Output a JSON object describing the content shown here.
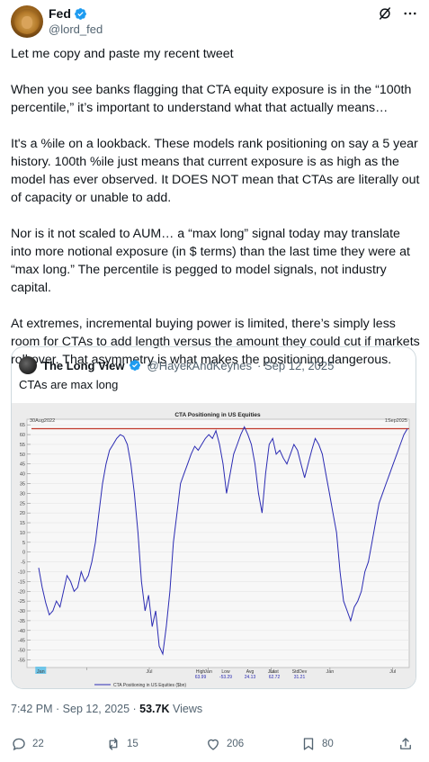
{
  "author": {
    "name": "Fed",
    "handle": "@lord_fed"
  },
  "tweet": {
    "paragraphs": [
      "Let me copy and paste my recent tweet",
      "When you see banks flagging that CTA equity exposure is in the “100th percentile,” it’s important to understand what that actually means…",
      "It's a %ile on a lookback. These models rank positioning on say a 5 year history. 100th %ile just means that current exposure is as high as the model has ever observed. It DOES NOT mean that CTAs are literally out of capacity or unable to add.",
      "Nor is it not scaled to AUM… a “max long” signal today may translate into more notional exposure (in $ terms) than the last time they were at “max long.” The percentile is pegged to model signals, not industry capital.",
      "At extremes, incremental buying power is limited, there’s simply less room for CTAs to add length versus the amount they could cut if markets roll over. That asymmetry is what makes the positioning dangerous."
    ],
    "timestamp": "7:42 PM · Sep 12, 2025 · ",
    "views_count": "53.7K",
    "views_label": " Views"
  },
  "quote": {
    "name": "The Long View",
    "handle": "@HayekAndKeynes",
    "date": "· Sep 12, 2025",
    "text": "CTAs are max long"
  },
  "actions": {
    "replies": "22",
    "reposts": "15",
    "likes": "206",
    "bookmarks": "80"
  },
  "colors": {
    "verified": "#1d9bf0",
    "line": "#2b2bb3",
    "upper_line": "#c0392b"
  },
  "chart_data": {
    "type": "line",
    "title": "CTA Positioning in US Equities",
    "start_label": "30Aug2022",
    "end_label": "1Sep2025",
    "y_ticks": [
      65,
      60,
      55,
      50,
      45,
      40,
      35,
      30,
      25,
      20,
      15,
      10,
      5,
      0,
      -5,
      -10,
      -15,
      -20,
      -25,
      -30,
      -35,
      -40,
      -45,
      -50,
      -55
    ],
    "ylim": [
      -58,
      66
    ],
    "x_ticks": [
      "Jan",
      "Jul",
      "Jan",
      "Jul",
      "Jan",
      "Jul"
    ],
    "x_tick_pos": [
      0.13,
      0.3,
      0.46,
      0.63,
      0.79,
      0.96
    ],
    "highlight_tick": "Jan",
    "reference_line": 63,
    "stats": {
      "labels": [
        "High",
        "Low",
        "Avg",
        "Last",
        "StdDev"
      ],
      "values": [
        "63.99",
        "-53.29",
        "24.13",
        "62.72",
        "31.21"
      ]
    },
    "legend": "CTA Positioning in US Equities ($bn)",
    "series": [
      {
        "values": [
          -8,
          -18,
          -26,
          -32,
          -30,
          -25,
          -28,
          -20,
          -12,
          -15,
          -20,
          -18,
          -10,
          -15,
          -12,
          -5,
          5,
          20,
          35,
          45,
          52,
          55,
          58,
          60,
          59,
          55,
          45,
          30,
          10,
          -15,
          -30,
          -22,
          -38,
          -30,
          -48,
          -52,
          -38,
          -20,
          5,
          20,
          35,
          40,
          45,
          50,
          54,
          52,
          55,
          58,
          60,
          58,
          62,
          55,
          45,
          30,
          40,
          50,
          55,
          60,
          64,
          60,
          55,
          45,
          30,
          20,
          40,
          55,
          58,
          50,
          52,
          48,
          45,
          50,
          55,
          52,
          45,
          38,
          45,
          52,
          58,
          55,
          50,
          40,
          30,
          20,
          10,
          -10,
          -25,
          -30,
          -35,
          -28,
          -25,
          -20,
          -10,
          -5,
          5,
          15,
          25,
          30,
          35,
          40,
          45,
          50,
          55,
          60,
          63
        ]
      }
    ]
  }
}
